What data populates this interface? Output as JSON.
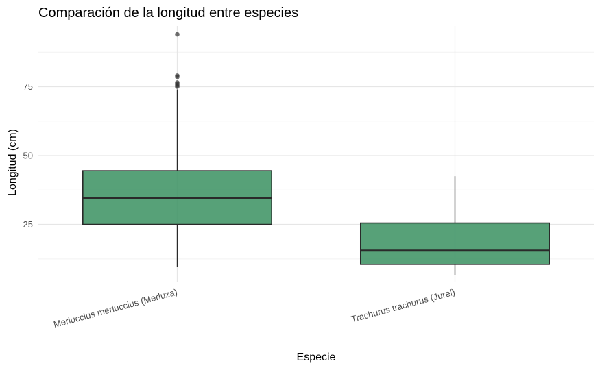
{
  "chart_data": {
    "type": "boxplot",
    "title": "Comparación de la longitud entre especies",
    "xlabel": "Especie",
    "ylabel": "Longitud (cm)",
    "ylim": [
      4,
      97
    ],
    "yticks": [
      25,
      50,
      75
    ],
    "grid": true,
    "fill_color": "#3a9160",
    "box_alpha": 0.85,
    "categories": [
      "Merluccius merluccius (Merluza)",
      "Trachurus trachurus (Jurel)"
    ],
    "boxes": [
      {
        "category": "Merluccius merluccius (Merluza)",
        "whisker_low": 9.5,
        "q1": 25,
        "median": 34.5,
        "q3": 44.5,
        "whisker_high": 74,
        "outliers": [
          75,
          75.5,
          76,
          76.5,
          78.5,
          79,
          94
        ]
      },
      {
        "category": "Trachurus trachurus (Jurel)",
        "whisker_low": 6.5,
        "q1": 10.5,
        "median": 15.5,
        "q3": 25.5,
        "whisker_high": 42.5,
        "outliers": []
      }
    ]
  }
}
